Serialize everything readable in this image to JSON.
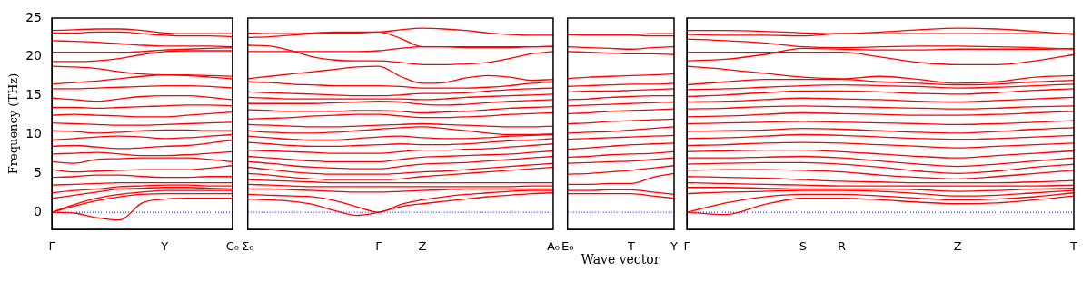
{
  "chart_data": [
    {
      "type": "line",
      "ylabel": "Frequency (THz)",
      "categories": [
        "Γ",
        null,
        null,
        null,
        null,
        "Y",
        null,
        null,
        "C₀"
      ],
      "ylim": [
        -2.2,
        25
      ],
      "yticks": [
        0,
        5,
        10,
        15,
        20,
        25
      ],
      "grid": false,
      "legend": false,
      "ref_lines": [
        {
          "axis": "y",
          "value": 0,
          "color": "#0000ff",
          "line_style": "dotted"
        }
      ],
      "series": [
        {
          "color": "#ff0000",
          "values": [
            0,
            -0.1,
            -0.7,
            -1.0,
            1.2,
            1.7,
            1.8,
            1.8,
            1.8
          ]
        },
        {
          "color": "#ff0000",
          "values": [
            0,
            0.8,
            1.5,
            2.0,
            2.3,
            2.4,
            2.4,
            2.4,
            2.4
          ]
        },
        {
          "color": "#ff0000",
          "values": [
            0,
            1.0,
            1.8,
            2.3,
            2.6,
            2.8,
            2.8,
            2.8,
            2.8
          ]
        },
        {
          "color": "#ff0000",
          "values": [
            1.8,
            2.2,
            2.6,
            3.0,
            3.1,
            3.2,
            3.2,
            3.1,
            3.0
          ]
        },
        {
          "color": "#ff0000",
          "values": [
            2.5,
            2.8,
            3.0,
            3.3,
            3.4,
            3.5,
            3.5,
            3.4,
            3.4
          ]
        },
        {
          "color": "#ff0000",
          "values": [
            3.5,
            3.6,
            3.7,
            3.8,
            3.8,
            3.8,
            3.8,
            3.8,
            3.8
          ]
        },
        {
          "color": "#ff0000",
          "values": [
            4.5,
            4.6,
            4.8,
            4.8,
            4.6,
            4.5,
            4.5,
            4.6,
            4.6
          ]
        },
        {
          "color": "#ff0000",
          "values": [
            5.5,
            5.2,
            5.3,
            5.4,
            5.5,
            5.5,
            5.5,
            5.7,
            6.0
          ]
        },
        {
          "color": "#ff0000",
          "values": [
            6.5,
            6.3,
            6.8,
            6.9,
            7.0,
            7.0,
            7.0,
            6.8,
            6.5
          ]
        },
        {
          "color": "#ff0000",
          "values": [
            7.5,
            7.6,
            7.7,
            7.5,
            7.3,
            7.3,
            7.4,
            7.6,
            7.8
          ]
        },
        {
          "color": "#ff0000",
          "values": [
            8.5,
            8.6,
            8.4,
            8.2,
            8.3,
            8.5,
            8.6,
            8.9,
            9.3
          ]
        },
        {
          "color": "#ff0000",
          "values": [
            9.3,
            9.5,
            9.7,
            9.8,
            9.7,
            9.5,
            9.6,
            9.8,
            10.0
          ]
        },
        {
          "color": "#ff0000",
          "values": [
            10.5,
            10.4,
            10.2,
            10.3,
            10.5,
            10.6,
            10.6,
            10.5,
            10.5
          ]
        },
        {
          "color": "#ff0000",
          "values": [
            11.5,
            11.4,
            11.3,
            11.2,
            11.2,
            11.3,
            11.4,
            11.5,
            11.6
          ]
        },
        {
          "color": "#ff0000",
          "values": [
            12.5,
            12.6,
            12.5,
            12.4,
            12.3,
            12.3,
            12.5,
            12.7,
            12.9
          ]
        },
        {
          "color": "#ff0000",
          "values": [
            13.5,
            13.5,
            13.4,
            13.5,
            13.6,
            13.7,
            13.8,
            13.8,
            13.7
          ]
        },
        {
          "color": "#ff0000",
          "values": [
            14.7,
            14.5,
            14.3,
            14.6,
            14.9,
            15.0,
            15.0,
            14.8,
            14.5
          ]
        },
        {
          "color": "#ff0000",
          "values": [
            15.9,
            15.9,
            16.0,
            16.1,
            16.2,
            16.3,
            16.3,
            16.2,
            16.0
          ]
        },
        {
          "color": "#ff0000",
          "values": [
            16.5,
            16.7,
            16.9,
            17.2,
            17.5,
            17.7,
            17.6,
            17.4,
            17.2
          ]
        },
        {
          "color": "#ff0000",
          "values": [
            18.8,
            18.7,
            18.5,
            18.1,
            17.8,
            17.7,
            17.7,
            17.6,
            17.5
          ]
        },
        {
          "color": "#ff0000",
          "values": [
            19.4,
            19.4,
            19.5,
            19.8,
            20.3,
            20.7,
            20.8,
            20.8,
            20.8
          ]
        },
        {
          "color": "#ff0000",
          "values": [
            20.6,
            20.6,
            20.6,
            20.6,
            20.7,
            20.9,
            21.0,
            21.1,
            21.2
          ]
        },
        {
          "color": "#ff0000",
          "values": [
            22.1,
            22.0,
            21.9,
            21.7,
            21.5,
            21.4,
            21.4,
            21.4,
            21.3
          ]
        },
        {
          "color": "#ff0000",
          "values": [
            23.1,
            23.1,
            23.2,
            23.2,
            23.0,
            22.8,
            22.7,
            22.7,
            22.6
          ]
        },
        {
          "color": "#ff0000",
          "values": [
            23.4,
            23.5,
            23.6,
            23.6,
            23.4,
            23.1,
            23.0,
            23.0,
            23.0
          ]
        }
      ]
    },
    {
      "type": "line",
      "categories": [
        "Σ₀",
        null,
        null,
        null,
        null,
        null,
        "Γ",
        null,
        "Z",
        null,
        null,
        null,
        null,
        null,
        "A₀"
      ],
      "ylim": [
        -2.2,
        25
      ],
      "yticks": [
        0,
        5,
        10,
        15,
        20,
        25
      ],
      "tick_labels": "x",
      "grid": false,
      "legend": false,
      "ref_lines": [
        {
          "axis": "y",
          "value": 0,
          "color": "#0000ff",
          "line_style": "dotted"
        }
      ],
      "series": [
        {
          "color": "#ff0000",
          "values": [
            1.7,
            1.6,
            1.4,
            1.0,
            0.2,
            -0.4,
            0,
            0.7,
            1.1,
            1.4,
            1.7,
            2.0,
            2.2,
            2.4,
            2.5
          ]
        },
        {
          "color": "#ff0000",
          "values": [
            2.3,
            2.2,
            2.1,
            2.0,
            1.5,
            0.7,
            0,
            1.0,
            1.6,
            2.0,
            2.3,
            2.5,
            2.7,
            2.8,
            2.8
          ]
        },
        {
          "color": "#ff0000",
          "values": [
            3.0,
            3.0,
            2.9,
            2.8,
            2.7,
            2.6,
            2.6,
            2.7,
            2.8,
            2.9,
            3.0,
            3.0,
            3.0,
            3.0,
            3.0
          ]
        },
        {
          "color": "#ff0000",
          "values": [
            3.6,
            3.5,
            3.4,
            3.3,
            3.3,
            3.3,
            3.3,
            3.3,
            3.3,
            3.3,
            3.3,
            3.3,
            3.3,
            3.4,
            3.4
          ]
        },
        {
          "color": "#ff0000",
          "values": [
            4.2,
            4.1,
            4.0,
            3.9,
            3.8,
            3.8,
            3.8,
            3.8,
            3.8,
            3.8,
            3.8,
            3.8,
            3.8,
            3.8,
            3.8
          ]
        },
        {
          "color": "#ff0000",
          "values": [
            5.0,
            4.8,
            4.5,
            4.3,
            4.2,
            4.2,
            4.2,
            4.3,
            4.6,
            4.8,
            5.0,
            5.2,
            5.4,
            5.6,
            5.8
          ]
        },
        {
          "color": "#ff0000",
          "values": [
            5.8,
            5.5,
            5.2,
            5.0,
            4.9,
            4.9,
            4.9,
            5.0,
            5.2,
            5.3,
            5.5,
            5.7,
            5.9,
            6.1,
            6.3
          ]
        },
        {
          "color": "#ff0000",
          "values": [
            6.5,
            6.3,
            6.0,
            5.8,
            5.7,
            5.6,
            5.6,
            5.9,
            6.2,
            6.3,
            6.4,
            6.6,
            6.8,
            7.0,
            7.2
          ]
        },
        {
          "color": "#ff0000",
          "values": [
            7.2,
            7.0,
            6.8,
            6.6,
            6.5,
            6.5,
            6.5,
            6.8,
            7.1,
            7.2,
            7.3,
            7.4,
            7.5,
            7.7,
            7.9
          ]
        },
        {
          "color": "#ff0000",
          "values": [
            8.0,
            7.9,
            7.8,
            7.7,
            7.6,
            7.6,
            7.6,
            7.8,
            8.0,
            8.0,
            8.1,
            8.2,
            8.4,
            8.6,
            8.8
          ]
        },
        {
          "color": "#ff0000",
          "values": [
            9.0,
            8.8,
            8.6,
            8.5,
            8.5,
            8.6,
            8.7,
            8.8,
            8.7,
            8.7,
            8.8,
            9.0,
            9.2,
            9.3,
            9.5
          ]
        },
        {
          "color": "#ff0000",
          "values": [
            9.8,
            9.6,
            9.4,
            9.3,
            9.3,
            9.5,
            9.7,
            9.8,
            9.6,
            9.5,
            9.5,
            9.6,
            9.8,
            9.9,
            10.0
          ]
        },
        {
          "color": "#ff0000",
          "values": [
            10.5,
            10.3,
            10.2,
            10.2,
            10.3,
            10.5,
            10.7,
            10.9,
            11.0,
            10.8,
            10.5,
            10.2,
            10.0,
            10.0,
            10.1
          ]
        },
        {
          "color": "#ff0000",
          "values": [
            11.3,
            11.2,
            11.1,
            11.0,
            11.0,
            11.1,
            11.2,
            11.3,
            11.4,
            11.3,
            11.2,
            11.1,
            11.0,
            11.0,
            11.1
          ]
        },
        {
          "color": "#ff0000",
          "values": [
            12.0,
            12.1,
            12.2,
            12.4,
            12.5,
            12.6,
            12.6,
            12.4,
            12.2,
            12.2,
            12.3,
            12.4,
            12.6,
            12.7,
            12.8
          ]
        },
        {
          "color": "#ff0000",
          "values": [
            13.2,
            13.1,
            13.0,
            13.0,
            13.0,
            13.1,
            13.1,
            13.0,
            12.8,
            12.9,
            13.0,
            13.2,
            13.4,
            13.5,
            13.6
          ]
        },
        {
          "color": "#ff0000",
          "values": [
            14.0,
            14.0,
            14.0,
            14.0,
            14.1,
            14.2,
            14.3,
            14.2,
            13.9,
            13.8,
            13.9,
            14.1,
            14.3,
            14.4,
            14.5
          ]
        },
        {
          "color": "#ff0000",
          "values": [
            14.8,
            14.7,
            14.6,
            14.6,
            14.6,
            14.6,
            14.6,
            14.6,
            14.5,
            14.6,
            14.8,
            14.9,
            15.0,
            15.1,
            15.2
          ]
        },
        {
          "color": "#ff0000",
          "values": [
            15.5,
            15.4,
            15.3,
            15.2,
            15.1,
            15.0,
            15.0,
            15.1,
            15.3,
            15.3,
            15.4,
            15.6,
            15.8,
            15.9,
            16.0
          ]
        },
        {
          "color": "#ff0000",
          "values": [
            16.8,
            16.7,
            16.5,
            16.4,
            16.3,
            16.3,
            16.3,
            16.2,
            16.0,
            16.0,
            16.0,
            16.1,
            16.3,
            16.6,
            16.8
          ]
        },
        {
          "color": "#ff0000",
          "values": [
            17.2,
            17.5,
            17.8,
            18.1,
            18.4,
            18.7,
            18.8,
            17.5,
            16.6,
            16.7,
            17.3,
            17.6,
            17.4,
            17.0,
            17.1
          ]
        },
        {
          "color": "#ff0000",
          "values": [
            20.7,
            20.7,
            20.7,
            20.7,
            20.7,
            20.7,
            20.8,
            21.1,
            21.3,
            21.3,
            21.3,
            21.3,
            21.3,
            21.3,
            21.4
          ]
        },
        {
          "color": "#ff0000",
          "values": [
            21.5,
            21.4,
            20.8,
            20.0,
            19.6,
            19.5,
            19.5,
            19.3,
            19.0,
            19.0,
            19.1,
            19.3,
            19.8,
            20.4,
            20.7
          ]
        },
        {
          "color": "#ff0000",
          "values": [
            22.5,
            22.6,
            22.8,
            23.0,
            23.1,
            23.1,
            23.2,
            22.4,
            21.3,
            21.3,
            21.2,
            21.2,
            21.2,
            21.3,
            21.3
          ]
        },
        {
          "color": "#ff0000",
          "values": [
            23.1,
            23.0,
            23.0,
            23.1,
            23.2,
            23.2,
            23.2,
            23.5,
            23.7,
            23.6,
            23.4,
            23.1,
            22.9,
            22.8,
            22.8
          ]
        }
      ]
    },
    {
      "type": "line",
      "xlabel": "Wave vector",
      "categories": [
        "E₀",
        null,
        null,
        "T",
        null,
        "Y"
      ],
      "ylim": [
        -2.2,
        25
      ],
      "yticks": [
        0,
        5,
        10,
        15,
        20,
        25
      ],
      "tick_labels": "x",
      "grid": false,
      "legend": false,
      "ref_lines": [
        {
          "axis": "y",
          "value": 0,
          "color": "#0000ff",
          "line_style": "dotted"
        }
      ],
      "series": [
        {
          "color": "#ff0000",
          "values": [
            2.4,
            2.4,
            2.4,
            2.4,
            2.1,
            1.8
          ]
        },
        {
          "color": "#ff0000",
          "values": [
            2.8,
            2.8,
            2.9,
            2.9,
            2.6,
            2.3
          ]
        },
        {
          "color": "#ff0000",
          "values": [
            3.6,
            3.6,
            3.7,
            3.7,
            4.5,
            5.0
          ]
        },
        {
          "color": "#ff0000",
          "values": [
            4.9,
            5.0,
            5.2,
            5.4,
            5.7,
            6.0
          ]
        },
        {
          "color": "#ff0000",
          "values": [
            6.3,
            6.4,
            6.5,
            6.6,
            6.8,
            7.0
          ]
        },
        {
          "color": "#ff0000",
          "values": [
            7.1,
            7.2,
            7.4,
            7.5,
            7.6,
            7.8
          ]
        },
        {
          "color": "#ff0000",
          "values": [
            8.1,
            8.3,
            8.5,
            8.7,
            8.8,
            8.9
          ]
        },
        {
          "color": "#ff0000",
          "values": [
            9.4,
            9.5,
            9.6,
            9.7,
            9.8,
            9.9
          ]
        },
        {
          "color": "#ff0000",
          "values": [
            10.2,
            10.3,
            10.4,
            10.6,
            10.8,
            11.0
          ]
        },
        {
          "color": "#ff0000",
          "values": [
            11.4,
            11.5,
            11.7,
            11.8,
            11.9,
            12.0
          ]
        },
        {
          "color": "#ff0000",
          "values": [
            12.7,
            12.8,
            13.0,
            13.1,
            13.2,
            13.3
          ]
        },
        {
          "color": "#ff0000",
          "values": [
            13.7,
            13.8,
            13.9,
            14.0,
            14.1,
            14.2
          ]
        },
        {
          "color": "#ff0000",
          "values": [
            14.5,
            14.6,
            14.8,
            14.9,
            15.0,
            15.0
          ]
        },
        {
          "color": "#ff0000",
          "values": [
            15.5,
            15.6,
            15.6,
            15.7,
            15.8,
            15.9
          ]
        },
        {
          "color": "#ff0000",
          "values": [
            16.2,
            16.3,
            16.4,
            16.5,
            16.5,
            16.6
          ]
        },
        {
          "color": "#ff0000",
          "values": [
            17.2,
            17.4,
            17.5,
            17.6,
            17.7,
            17.8
          ]
        },
        {
          "color": "#ff0000",
          "values": [
            20.7,
            20.6,
            20.5,
            20.4,
            20.4,
            20.3
          ]
        },
        {
          "color": "#ff0000",
          "values": [
            21.3,
            21.2,
            21.1,
            21.0,
            21.2,
            21.3
          ]
        },
        {
          "color": "#ff0000",
          "values": [
            22.9,
            22.8,
            22.8,
            22.8,
            22.7,
            22.7
          ]
        },
        {
          "color": "#ff0000",
          "values": [
            22.9,
            22.9,
            22.9,
            22.9,
            23.0,
            23.0
          ]
        }
      ]
    },
    {
      "type": "line",
      "categories": [
        "Γ",
        null,
        null,
        "S",
        "R",
        null,
        null,
        "Z",
        null,
        null,
        "T"
      ],
      "ylim": [
        -2.2,
        25
      ],
      "yticks": [
        0,
        5,
        10,
        15,
        20,
        25
      ],
      "tick_labels": "x",
      "grid": false,
      "legend": false,
      "ref_lines": [
        {
          "axis": "y",
          "value": 0,
          "color": "#0000ff",
          "line_style": "dotted"
        }
      ],
      "series": [
        {
          "color": "#ff0000",
          "values": [
            0,
            -0.3,
            1.0,
            1.8,
            1.8,
            1.6,
            1.3,
            1.1,
            1.2,
            1.6,
            2.1
          ]
        },
        {
          "color": "#ff0000",
          "values": [
            0,
            1.2,
            2.0,
            2.3,
            2.3,
            2.1,
            1.8,
            1.6,
            1.7,
            2.0,
            2.5
          ]
        },
        {
          "color": "#ff0000",
          "values": [
            2.4,
            2.6,
            2.7,
            2.8,
            2.8,
            2.7,
            2.4,
            2.1,
            2.2,
            2.5,
            2.8
          ]
        },
        {
          "color": "#ff0000",
          "values": [
            3.2,
            3.2,
            3.1,
            3.0,
            3.0,
            3.0,
            2.9,
            2.7,
            2.8,
            3.0,
            3.1
          ]
        },
        {
          "color": "#ff0000",
          "values": [
            3.8,
            3.7,
            3.6,
            3.5,
            3.4,
            3.4,
            3.4,
            3.4,
            3.4,
            3.4,
            3.5
          ]
        },
        {
          "color": "#ff0000",
          "values": [
            4.6,
            4.5,
            4.4,
            4.2,
            4.0,
            3.9,
            3.8,
            3.8,
            3.8,
            3.9,
            4.1
          ]
        },
        {
          "color": "#ff0000",
          "values": [
            5.4,
            5.5,
            5.5,
            5.4,
            5.2,
            4.8,
            4.5,
            4.3,
            4.6,
            5.0,
            5.4
          ]
        },
        {
          "color": "#ff0000",
          "values": [
            6.2,
            6.3,
            6.4,
            6.4,
            6.2,
            5.8,
            5.3,
            5.0,
            5.3,
            5.8,
            6.2
          ]
        },
        {
          "color": "#ff0000",
          "values": [
            7.0,
            7.0,
            7.1,
            7.2,
            7.0,
            6.6,
            6.2,
            5.9,
            6.2,
            6.6,
            7.0
          ]
        },
        {
          "color": "#ff0000",
          "values": [
            7.8,
            7.9,
            8.0,
            8.0,
            7.8,
            7.5,
            7.2,
            7.0,
            7.3,
            7.6,
            7.9
          ]
        },
        {
          "color": "#ff0000",
          "values": [
            8.6,
            8.7,
            8.9,
            9.0,
            8.9,
            8.7,
            8.5,
            8.3,
            8.5,
            8.7,
            8.9
          ]
        },
        {
          "color": "#ff0000",
          "values": [
            9.5,
            9.6,
            9.8,
            10.0,
            9.9,
            9.7,
            9.5,
            9.4,
            9.5,
            9.7,
            9.9
          ]
        },
        {
          "color": "#ff0000",
          "values": [
            10.4,
            10.5,
            10.6,
            10.8,
            10.7,
            10.5,
            10.3,
            10.2,
            10.4,
            10.7,
            10.9
          ]
        },
        {
          "color": "#ff0000",
          "values": [
            11.4,
            11.5,
            11.6,
            11.7,
            11.6,
            11.5,
            11.4,
            11.3,
            11.4,
            11.6,
            11.8
          ]
        },
        {
          "color": "#ff0000",
          "values": [
            12.3,
            12.4,
            12.6,
            12.8,
            12.7,
            12.6,
            12.5,
            12.5,
            12.6,
            12.8,
            13.0
          ]
        },
        {
          "color": "#ff0000",
          "values": [
            13.3,
            13.4,
            13.6,
            13.7,
            13.6,
            13.5,
            13.4,
            13.3,
            13.4,
            13.6,
            13.7
          ]
        },
        {
          "color": "#ff0000",
          "values": [
            14.2,
            14.3,
            14.5,
            14.7,
            14.6,
            14.5,
            14.3,
            14.2,
            14.4,
            14.6,
            14.8
          ]
        },
        {
          "color": "#ff0000",
          "values": [
            14.9,
            15.1,
            15.4,
            15.6,
            15.6,
            15.5,
            15.3,
            15.2,
            15.4,
            15.7,
            15.9
          ]
        },
        {
          "color": "#ff0000",
          "values": [
            15.8,
            15.9,
            16.1,
            16.3,
            16.4,
            16.3,
            16.2,
            16.0,
            16.1,
            16.3,
            16.5
          ]
        },
        {
          "color": "#ff0000",
          "values": [
            16.4,
            16.8,
            17.1,
            17.1,
            17.1,
            16.8,
            16.6,
            16.4,
            16.5,
            16.8,
            17.0
          ]
        },
        {
          "color": "#ff0000",
          "values": [
            18.8,
            18.4,
            17.9,
            17.4,
            17.2,
            17.5,
            17.1,
            16.6,
            16.8,
            17.4,
            17.6
          ]
        },
        {
          "color": "#ff0000",
          "values": [
            19.5,
            19.7,
            20.3,
            21.1,
            21.0,
            20.9,
            20.9,
            21.0,
            21.0,
            21.0,
            21.1
          ]
        },
        {
          "color": "#ff0000",
          "values": [
            20.6,
            20.6,
            20.6,
            20.6,
            20.6,
            20.0,
            19.3,
            19.0,
            19.0,
            19.5,
            20.3
          ]
        },
        {
          "color": "#ff0000",
          "values": [
            22.3,
            22.1,
            21.8,
            21.3,
            21.2,
            21.3,
            21.4,
            21.4,
            21.3,
            21.2,
            21.0
          ]
        },
        {
          "color": "#ff0000",
          "values": [
            22.9,
            22.8,
            22.8,
            22.7,
            23.0,
            23.0,
            23.0,
            23.0,
            23.0,
            23.0,
            23.0
          ]
        },
        {
          "color": "#ff0000",
          "values": [
            23.4,
            23.4,
            23.3,
            23.1,
            23.0,
            23.2,
            23.5,
            23.7,
            23.6,
            23.3,
            22.9
          ]
        }
      ]
    }
  ]
}
